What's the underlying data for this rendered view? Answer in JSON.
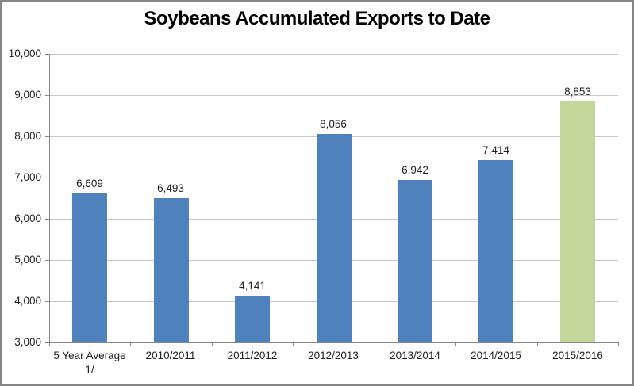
{
  "window": {
    "background": "#ffffff",
    "border_color": "#848484"
  },
  "chart_data": {
    "type": "bar",
    "title": "Soybeans Accumulated Exports to Date",
    "categories": [
      "5 Year Average\n1/",
      "2010/2011",
      "2011/2012",
      "2012/2013",
      "2013/2014",
      "2014/2015",
      "2015/2016"
    ],
    "values": [
      6609,
      6493,
      4141,
      8056,
      6942,
      7414,
      8853
    ],
    "data_labels": [
      "6,609",
      "6,493",
      "4,141",
      "8,056",
      "6,942",
      "7,414",
      "8,853"
    ],
    "bar_colors": [
      "#4f81bd",
      "#4f81bd",
      "#4f81bd",
      "#4f81bd",
      "#4f81bd",
      "#4f81bd",
      "#c4d79b"
    ],
    "xlabel": "",
    "ylabel": "",
    "ylim": [
      3000,
      10000
    ],
    "ytick_interval": 1000,
    "ytick_labels": [
      "3,000",
      "4,000",
      "5,000",
      "6,000",
      "7,000",
      "8,000",
      "9,000",
      "10,000"
    ],
    "grid": true,
    "legend": "none",
    "colors": {
      "series_blue": "#4f81bd",
      "highlight_green": "#c4d79b",
      "gridline": "#c6c6c6",
      "axis_line": "#868686",
      "label_text": "#1f1f1f"
    }
  }
}
